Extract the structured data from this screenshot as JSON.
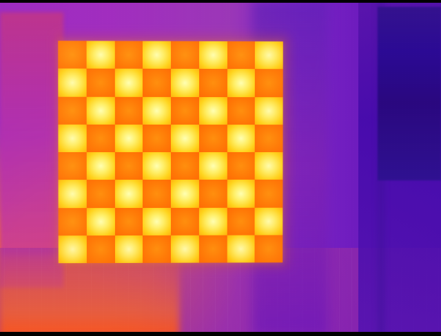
{
  "scene": {
    "type": "thermal-camera-image",
    "dominant_subject": "checkerboard-calibration-target",
    "colors": {
      "background_purple": "#9b2fb0",
      "background_violet": "#5312b4",
      "hot_orange": "#ff7806",
      "hot_yellow": "#ffd31c",
      "hot_white": "#ffffb2"
    }
  },
  "board": {
    "rows": 8,
    "columns": 8,
    "pattern": "alternating"
  }
}
